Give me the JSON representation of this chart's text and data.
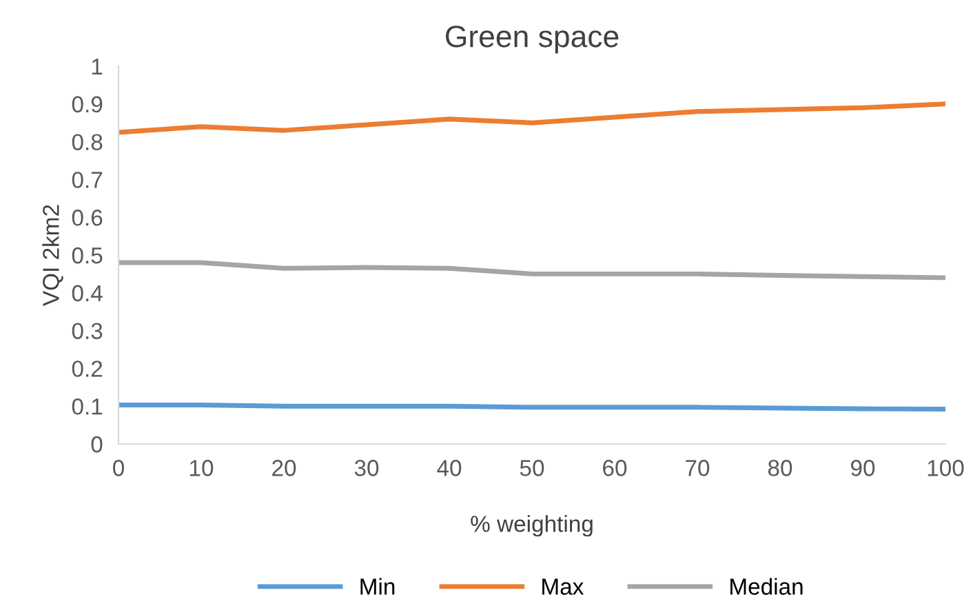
{
  "chart_data": {
    "type": "line",
    "title": "Green space",
    "xlabel": "% weighting",
    "ylabel": "VQI 2km2",
    "x": [
      0,
      10,
      20,
      30,
      40,
      50,
      60,
      70,
      80,
      90,
      100
    ],
    "series": [
      {
        "name": "Min",
        "color": "#5b9bd5",
        "values": [
          0.103,
          0.103,
          0.1,
          0.1,
          0.1,
          0.097,
          0.097,
          0.097,
          0.095,
          0.093,
          0.092
        ]
      },
      {
        "name": "Max",
        "color": "#ed7d31",
        "values": [
          0.825,
          0.84,
          0.83,
          0.845,
          0.86,
          0.85,
          0.865,
          0.88,
          0.885,
          0.89,
          0.9
        ]
      },
      {
        "name": "Median",
        "color": "#a5a5a5",
        "values": [
          0.48,
          0.48,
          0.465,
          0.467,
          0.465,
          0.45,
          0.45,
          0.45,
          0.446,
          0.443,
          0.44
        ]
      }
    ],
    "xlim": [
      0,
      100
    ],
    "xticks": [
      0,
      10,
      20,
      30,
      40,
      50,
      60,
      70,
      80,
      90,
      100
    ],
    "ylim": [
      0,
      1
    ],
    "yticks": [
      0,
      0.1,
      0.2,
      0.3,
      0.4,
      0.5,
      0.6,
      0.7,
      0.8,
      0.9,
      1
    ],
    "grid": false,
    "legend": "bottom",
    "marker": "none",
    "line_style": "solid"
  }
}
